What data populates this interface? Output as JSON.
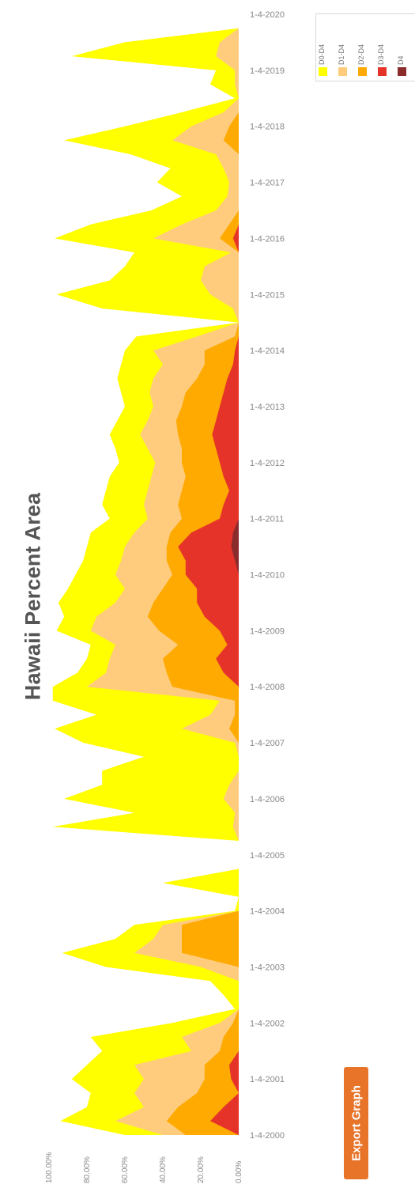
{
  "chart_data": {
    "type": "area",
    "title": "Hawaii Percent Area",
    "orientation": "rotated-90",
    "x_axis": {
      "ticks": [
        "1-4-2000",
        "1-4-2001",
        "1-4-2002",
        "1-4-2003",
        "1-4-2004",
        "1-4-2005",
        "1-4-2006",
        "1-4-2007",
        "1-4-2008",
        "1-4-2009",
        "1-4-2010",
        "1-4-2011",
        "1-4-2012",
        "1-4-2013",
        "1-4-2014",
        "1-4-2015",
        "1-4-2016",
        "1-4-2017",
        "1-4-2018",
        "1-4-2019",
        "1-4-2020"
      ],
      "range": [
        2000.0,
        2020.0
      ]
    },
    "y_axis": {
      "ticks": [
        "100.00%",
        "80.00%",
        "60.00%",
        "40.00%",
        "20.00%",
        "0.00%"
      ],
      "range": [
        0,
        100
      ]
    },
    "x": [
      2000.0,
      2000.25,
      2000.5,
      2000.75,
      2001.0,
      2001.25,
      2001.5,
      2001.75,
      2002.0,
      2002.25,
      2002.5,
      2002.75,
      2003.0,
      2003.25,
      2003.5,
      2003.75,
      2004.0,
      2004.25,
      2004.5,
      2004.75,
      2005.0,
      2005.25,
      2005.5,
      2005.75,
      2006.0,
      2006.25,
      2006.5,
      2006.75,
      2007.0,
      2007.25,
      2007.5,
      2007.75,
      2008.0,
      2008.25,
      2008.5,
      2008.75,
      2009.0,
      2009.25,
      2009.5,
      2009.75,
      2010.0,
      2010.25,
      2010.5,
      2010.75,
      2011.0,
      2011.25,
      2011.5,
      2011.75,
      2012.0,
      2012.25,
      2012.5,
      2012.75,
      2013.0,
      2013.25,
      2013.5,
      2013.75,
      2014.0,
      2014.25,
      2014.5,
      2014.75,
      2015.0,
      2015.25,
      2015.5,
      2015.75,
      2016.0,
      2016.25,
      2016.5,
      2016.75,
      2017.0,
      2017.25,
      2017.5,
      2017.75,
      2018.0,
      2018.25,
      2018.5,
      2018.75,
      2019.0,
      2019.25,
      2019.5,
      2019.75,
      2020.0
    ],
    "series": [
      {
        "name": "D0-D4",
        "color": "#ffff00",
        "values": [
          60,
          94,
          80,
          78,
          88,
          80,
          72,
          78,
          35,
          2,
          8,
          15,
          70,
          93,
          65,
          55,
          2,
          0,
          40,
          0,
          0,
          0,
          98,
          55,
          92,
          72,
          72,
          50,
          82,
          97,
          75,
          98,
          98,
          85,
          80,
          78,
          96,
          92,
          95,
          90,
          86,
          82,
          80,
          78,
          68,
          72,
          70,
          68,
          63,
          65,
          68,
          64,
          60,
          62,
          64,
          62,
          60,
          54,
          0,
          72,
          96,
          68,
          60,
          55,
          97,
          78,
          46,
          30,
          43,
          36,
          57,
          92,
          60,
          30,
          2,
          15,
          12,
          88,
          60,
          0,
          0
        ]
      },
      {
        "name": "D1-D4",
        "color": "#ffcc7e",
        "values": [
          40,
          65,
          50,
          55,
          50,
          55,
          25,
          30,
          10,
          0,
          0,
          0,
          20,
          55,
          45,
          40,
          0,
          0,
          0,
          0,
          0,
          0,
          3,
          2,
          8,
          5,
          0,
          0,
          2,
          30,
          15,
          10,
          80,
          70,
          68,
          65,
          78,
          75,
          65,
          60,
          65,
          62,
          60,
          55,
          48,
          50,
          48,
          46,
          44,
          48,
          52,
          48,
          45,
          47,
          45,
          40,
          45,
          22,
          0,
          3,
          15,
          20,
          18,
          4,
          45,
          30,
          12,
          6,
          5,
          8,
          12,
          35,
          25,
          8,
          0,
          2,
          2,
          12,
          10,
          0,
          0
        ]
      },
      {
        "name": "D2-D4",
        "color": "#ffaa00",
        "values": [
          28,
          38,
          32,
          22,
          18,
          18,
          10,
          8,
          3,
          0,
          0,
          0,
          0,
          30,
          30,
          30,
          0,
          0,
          0,
          0,
          0,
          0,
          0,
          0,
          0,
          0,
          0,
          0,
          0,
          5,
          2,
          2,
          35,
          38,
          40,
          32,
          42,
          48,
          45,
          40,
          35,
          38,
          38,
          36,
          30,
          32,
          30,
          28,
          30,
          30,
          32,
          33,
          30,
          28,
          22,
          18,
          18,
          2,
          0,
          0,
          0,
          0,
          0,
          0,
          10,
          5,
          0,
          0,
          0,
          0,
          0,
          8,
          5,
          0,
          0,
          0,
          0,
          0,
          0,
          0,
          0
        ]
      },
      {
        "name": "D3-D4",
        "color": "#e6332a",
        "values": [
          0,
          15,
          8,
          0,
          4,
          5,
          0,
          0,
          0,
          0,
          0,
          0,
          0,
          0,
          0,
          0,
          0,
          0,
          0,
          0,
          0,
          0,
          0,
          0,
          0,
          0,
          0,
          0,
          0,
          0,
          0,
          0,
          0,
          8,
          12,
          6,
          10,
          18,
          22,
          22,
          28,
          28,
          32,
          25,
          10,
          8,
          5,
          8,
          10,
          12,
          14,
          12,
          10,
          8,
          6,
          3,
          2,
          0,
          0,
          0,
          0,
          0,
          0,
          0,
          3,
          0,
          0,
          0,
          0,
          0,
          0,
          0,
          0,
          0,
          0,
          0,
          0,
          0,
          0,
          0,
          0
        ]
      },
      {
        "name": "D4",
        "color": "#8b2c2c",
        "values": [
          0,
          0,
          0,
          0,
          0,
          0,
          0,
          0,
          0,
          0,
          0,
          0,
          0,
          0,
          0,
          0,
          0,
          0,
          0,
          0,
          0,
          0,
          0,
          0,
          0,
          0,
          0,
          0,
          0,
          0,
          0,
          0,
          0,
          0,
          0,
          0,
          0,
          0,
          0,
          0,
          0,
          2,
          4,
          3,
          0,
          0,
          0,
          0,
          0,
          0,
          0,
          0,
          0,
          0,
          0,
          0,
          0,
          0,
          0,
          0,
          0,
          0,
          0,
          0,
          0,
          0,
          0,
          0,
          0,
          0,
          0,
          0,
          0,
          0,
          0,
          0,
          0,
          0,
          0,
          0,
          0
        ]
      }
    ],
    "legend": [
      "D0-D4",
      "D1-D4",
      "D2-D4",
      "D3-D4",
      "D4"
    ],
    "legend_placement": "top-right",
    "grid": false
  },
  "buttons": {
    "export": "Export Graph"
  }
}
